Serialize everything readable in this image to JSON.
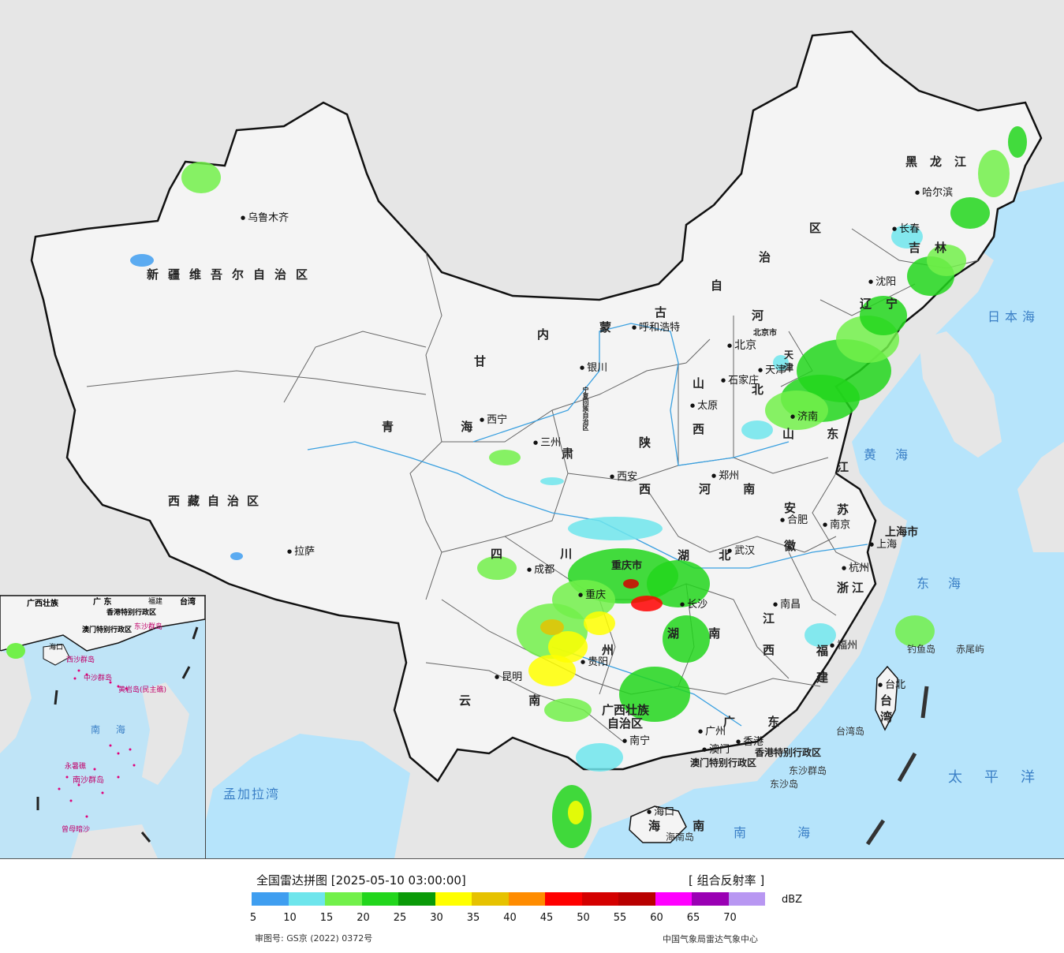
{
  "map": {
    "provinces": [
      {
        "id": "xinjiang",
        "name": "新疆维吾尔自治区"
      },
      {
        "id": "xizang",
        "name": "西藏自治区"
      },
      {
        "id": "qinghai",
        "name": "青 海"
      },
      {
        "id": "gansu",
        "name": "甘"
      },
      {
        "id": "gansu2",
        "name": "肃"
      },
      {
        "id": "neimenggu",
        "name": "内"
      },
      {
        "id": "neimenggu2",
        "name": "蒙"
      },
      {
        "id": "neimenggu3",
        "name": "古"
      },
      {
        "id": "neimenggu4",
        "name": "自"
      },
      {
        "id": "neimenggu5",
        "name": "治"
      },
      {
        "id": "neimenggu6",
        "name": "区"
      },
      {
        "id": "heilongjiang",
        "name": "黑龙江"
      },
      {
        "id": "jilin",
        "name": "吉林"
      },
      {
        "id": "liaoning",
        "name": "辽宁"
      },
      {
        "id": "hebei",
        "name": "河"
      },
      {
        "id": "hebei2",
        "name": "北"
      },
      {
        "id": "shanxi",
        "name": "山"
      },
      {
        "id": "shanxi2",
        "name": "西"
      },
      {
        "id": "shaanxi",
        "name": "陕"
      },
      {
        "id": "shaanxi2",
        "name": "西"
      },
      {
        "id": "shandong",
        "name": "山 东"
      },
      {
        "id": "henan",
        "name": "河 南"
      },
      {
        "id": "jiangsu",
        "name": "江"
      },
      {
        "id": "jiangsu2",
        "name": "苏"
      },
      {
        "id": "anhui",
        "name": "安"
      },
      {
        "id": "anhui2",
        "name": "徽"
      },
      {
        "id": "sichuan",
        "name": "四 川"
      },
      {
        "id": "hubei",
        "name": "湖 北"
      },
      {
        "id": "hunan",
        "name": "湖 南"
      },
      {
        "id": "jiangxi",
        "name": "江"
      },
      {
        "id": "jiangxi2",
        "name": "西"
      },
      {
        "id": "zhejiang",
        "name": "浙江"
      },
      {
        "id": "fujian",
        "name": "福"
      },
      {
        "id": "fujian2",
        "name": "建"
      },
      {
        "id": "guizhou",
        "name": "州"
      },
      {
        "id": "yunnan",
        "name": "云 南"
      },
      {
        "id": "guangxi",
        "name": "广西壮族"
      },
      {
        "id": "guangxi2",
        "name": "自治区"
      },
      {
        "id": "guangdong",
        "name": "广 东"
      },
      {
        "id": "hainan",
        "name": "海 南"
      },
      {
        "id": "taiwan",
        "name": "台"
      },
      {
        "id": "taiwan2",
        "name": "湾"
      },
      {
        "id": "shanghai",
        "name": "上海市"
      },
      {
        "id": "tianjin",
        "name": "天"
      },
      {
        "id": "tianjin2",
        "name": "津"
      },
      {
        "id": "beijing",
        "name": "北京市"
      },
      {
        "id": "chongqing",
        "name": "重庆市"
      },
      {
        "id": "ningxia",
        "name": "宁夏回族自治区"
      },
      {
        "id": "hk",
        "name": "香港特别行政区"
      },
      {
        "id": "macau",
        "name": "澳门特别行政区"
      }
    ],
    "cities": [
      {
        "id": "urumqi",
        "name": "乌鲁木齐"
      },
      {
        "id": "lhasa",
        "name": "拉萨"
      },
      {
        "id": "xining",
        "name": "西宁"
      },
      {
        "id": "lanzhou",
        "name": "三州"
      },
      {
        "id": "yinchuan",
        "name": "银川"
      },
      {
        "id": "hohhot",
        "name": "呼和浩特"
      },
      {
        "id": "harbin",
        "name": "哈尔滨"
      },
      {
        "id": "changchun",
        "name": "长春"
      },
      {
        "id": "shenyang",
        "name": "沈阳"
      },
      {
        "id": "beijing",
        "name": "北京"
      },
      {
        "id": "tianjin",
        "name": "天津"
      },
      {
        "id": "shijiazhuang",
        "name": "石家庄"
      },
      {
        "id": "taiyuan",
        "name": "太原"
      },
      {
        "id": "jinan",
        "name": "济南"
      },
      {
        "id": "xian",
        "name": "西安"
      },
      {
        "id": "zhengzhou",
        "name": "郑州"
      },
      {
        "id": "hefei",
        "name": "合肥"
      },
      {
        "id": "nanjing",
        "name": "南京"
      },
      {
        "id": "shanghai",
        "name": "上海"
      },
      {
        "id": "hangzhou",
        "name": "杭州"
      },
      {
        "id": "chengdu",
        "name": "成都"
      },
      {
        "id": "chongqing",
        "name": "重庆"
      },
      {
        "id": "wuhan",
        "name": "武汉"
      },
      {
        "id": "changsha",
        "name": "长沙"
      },
      {
        "id": "nanchang",
        "name": "南昌"
      },
      {
        "id": "fuzhou",
        "name": "福州"
      },
      {
        "id": "taibei",
        "name": "台北"
      },
      {
        "id": "guiyang",
        "name": "贵阳"
      },
      {
        "id": "kunming",
        "name": "昆明"
      },
      {
        "id": "nanning",
        "name": "南宁"
      },
      {
        "id": "guangzhou",
        "name": "广州"
      },
      {
        "id": "hongkong",
        "name": "香港"
      },
      {
        "id": "macau",
        "name": "澳门"
      },
      {
        "id": "haikou",
        "name": "海口"
      }
    ],
    "seas": [
      {
        "id": "japan_sea",
        "name": "日本海"
      },
      {
        "id": "yellow_sea",
        "name": "黄海"
      },
      {
        "id": "east_sea",
        "name": "东海"
      },
      {
        "id": "pacific",
        "name": "太平洋"
      },
      {
        "id": "south_sea",
        "name": "南 海"
      },
      {
        "id": "bengal",
        "name": "孟加拉湾"
      }
    ],
    "islands": [
      {
        "id": "diaoyu",
        "name": "钓鱼岛"
      },
      {
        "id": "chiwei",
        "name": "赤尾屿"
      },
      {
        "id": "taiwan_island",
        "name": "台湾岛"
      },
      {
        "id": "dongsha_group",
        "name": "东沙群岛"
      },
      {
        "id": "dongsha",
        "name": "东沙岛"
      },
      {
        "id": "hainan_island",
        "name": "海南岛"
      }
    ],
    "inset": {
      "labels": {
        "guangxi": "广西壮族",
        "guangdong": "广 东",
        "fujian": "福建",
        "taiwan": "台湾",
        "hk": "香港特别行政区",
        "macau": "澳门特别行政区",
        "dongsha": "东沙群岛",
        "haikou": "海口",
        "xisha": "西沙群岛",
        "zhongsha": "中沙群岛",
        "huangyan": "黄岩岛(民主礁)",
        "south_sea": "南 海",
        "yongshu": "永暑礁",
        "nansha": "南沙群岛",
        "zengmu": "曾母暗沙"
      }
    }
  },
  "legend": {
    "title": "全国雷达拼图 [2025-05-10 03:00:00]",
    "product": "[ 组合反射率 ]",
    "unit": "dBZ",
    "colors": [
      "#3f9ef0",
      "#6ee5ec",
      "#72f04a",
      "#22d61c",
      "#0a9a08",
      "#ffff00",
      "#e6c200",
      "#ff8c00",
      "#ff0000",
      "#d40000",
      "#b80000",
      "#ff00ff",
      "#9a00b4",
      "#b897f2"
    ],
    "ticks": [
      "5",
      "10",
      "15",
      "20",
      "25",
      "30",
      "35",
      "40",
      "45",
      "50",
      "55",
      "60",
      "65",
      "70"
    ],
    "approval": "审图号: GS京 (2022) 0372号",
    "org": "中国气象局雷达气象中心"
  }
}
